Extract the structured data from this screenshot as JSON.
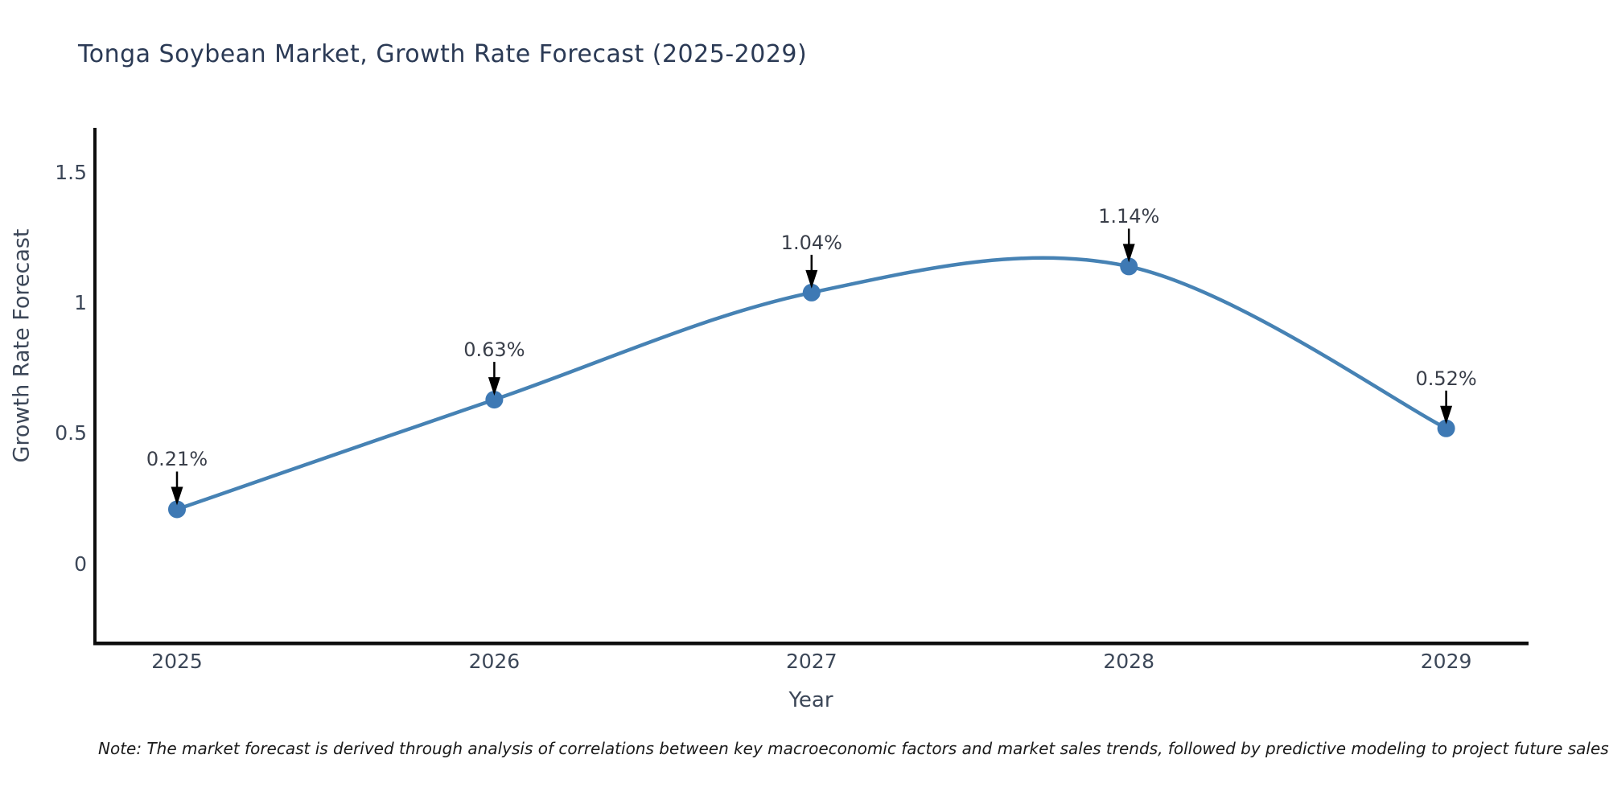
{
  "chart_data": {
    "type": "line",
    "line_shape": "spline",
    "title": "Tonga Soybean Market, Growth Rate Forecast (2025-2029)",
    "xlabel": "Year",
    "ylabel": "Growth Rate Forecast",
    "x": [
      2025,
      2026,
      2027,
      2028,
      2029
    ],
    "values": [
      0.21,
      0.63,
      1.04,
      1.14,
      0.52
    ],
    "point_labels": [
      "0.21%",
      "0.63%",
      "1.04%",
      "1.14%",
      "0.52%"
    ],
    "xtick_labels": [
      "2025",
      "2026",
      "2027",
      "2028",
      "2029"
    ],
    "yticks": [
      0,
      0.5,
      1,
      1.5
    ],
    "ytick_labels": [
      "0",
      "0.5",
      "1",
      "1.5"
    ],
    "ylim": [
      -0.3,
      1.77
    ],
    "xlim": [
      2024.74,
      2029.26
    ],
    "grid": false,
    "legend": "none",
    "annotation_style": "down-arrow",
    "note": "Note: The market forecast is derived through analysis of correlations between key macroeconomic factors and market sales trends, followed by predictive modeling to project future sales",
    "colors": {
      "background": "#ffffff",
      "line": "#4682b4",
      "marker": "#3e79b4",
      "arrow": "#000000",
      "axis": "#0d0d0d",
      "title_text": "#2b3a55",
      "tick_text": "#3c4758",
      "annotation_text": "#3a3f4a",
      "note_text": "#1a1a1a"
    }
  }
}
